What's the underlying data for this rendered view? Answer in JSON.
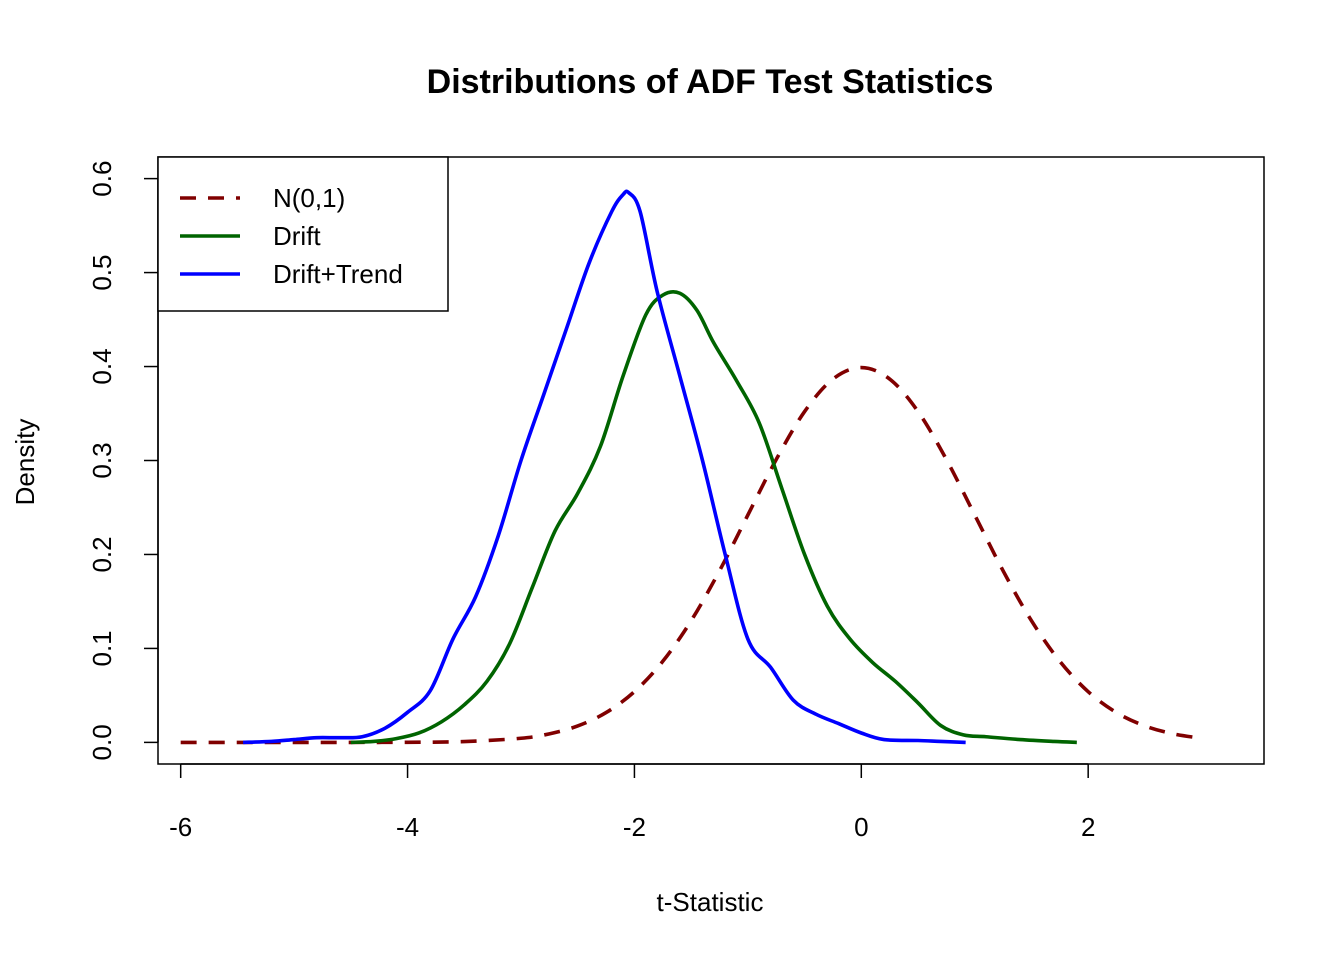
{
  "chart_data": {
    "type": "line",
    "title": "Distributions of ADF Test Statistics",
    "xlabel": "t-Statistic",
    "ylabel": "Density",
    "xlim": [
      -6.2,
      3.55
    ],
    "ylim": [
      -0.023,
      0.623
    ],
    "x_ticks": [
      -6,
      -4,
      -2,
      0,
      2
    ],
    "y_ticks": [
      0.0,
      0.1,
      0.2,
      0.3,
      0.4,
      0.5,
      0.6
    ],
    "legend_position": "top-left",
    "series": [
      {
        "name": "N(0,1)",
        "color": "#800000",
        "style": "dashed",
        "x": [
          -6.0,
          -5.5,
          -5.0,
          -4.5,
          -4.0,
          -3.5,
          -3.0,
          -2.75,
          -2.5,
          -2.25,
          -2.0,
          -1.75,
          -1.5,
          -1.25,
          -1.0,
          -0.75,
          -0.5,
          -0.25,
          0.0,
          0.25,
          0.5,
          0.75,
          1.0,
          1.25,
          1.5,
          1.75,
          2.0,
          2.25,
          2.5,
          2.75,
          3.0
        ],
        "y": [
          0.0,
          0.0,
          0.0,
          0.0,
          0.0001,
          0.0009,
          0.0044,
          0.0091,
          0.0175,
          0.0317,
          0.054,
          0.0863,
          0.1295,
          0.1826,
          0.242,
          0.3011,
          0.3521,
          0.3867,
          0.3989,
          0.3867,
          0.3521,
          0.3011,
          0.242,
          0.1826,
          0.1295,
          0.0863,
          0.054,
          0.0317,
          0.0175,
          0.0091,
          0.0044
        ]
      },
      {
        "name": "Drift",
        "color": "#006400",
        "style": "solid",
        "x": [
          -4.5,
          -4.3,
          -4.1,
          -3.9,
          -3.7,
          -3.5,
          -3.3,
          -3.1,
          -2.9,
          -2.7,
          -2.5,
          -2.3,
          -2.1,
          -1.9,
          -1.75,
          -1.6,
          -1.45,
          -1.3,
          -1.1,
          -0.9,
          -0.7,
          -0.5,
          -0.3,
          -0.1,
          0.1,
          0.3,
          0.5,
          0.7,
          0.9,
          1.1,
          1.4,
          1.7,
          1.9
        ],
        "y": [
          0.0,
          0.001,
          0.004,
          0.01,
          0.022,
          0.04,
          0.065,
          0.105,
          0.165,
          0.225,
          0.265,
          0.315,
          0.39,
          0.455,
          0.476,
          0.478,
          0.46,
          0.425,
          0.385,
          0.34,
          0.27,
          0.2,
          0.145,
          0.11,
          0.085,
          0.065,
          0.042,
          0.018,
          0.008,
          0.006,
          0.003,
          0.001,
          0.0
        ]
      },
      {
        "name": "Drift+Trend",
        "color": "#0000FF",
        "style": "solid",
        "x": [
          -5.45,
          -5.2,
          -5.0,
          -4.8,
          -4.6,
          -4.4,
          -4.2,
          -4.0,
          -3.8,
          -3.6,
          -3.4,
          -3.2,
          -3.0,
          -2.8,
          -2.6,
          -2.4,
          -2.2,
          -2.1,
          -2.05,
          -1.95,
          -1.8,
          -1.6,
          -1.4,
          -1.2,
          -1.0,
          -0.8,
          -0.6,
          -0.4,
          -0.2,
          0.0,
          0.2,
          0.5,
          0.7,
          0.92
        ],
        "y": [
          0.0,
          0.001,
          0.003,
          0.005,
          0.005,
          0.006,
          0.015,
          0.032,
          0.055,
          0.11,
          0.155,
          0.22,
          0.3,
          0.37,
          0.44,
          0.51,
          0.565,
          0.583,
          0.585,
          0.565,
          0.48,
          0.39,
          0.3,
          0.2,
          0.11,
          0.08,
          0.045,
          0.03,
          0.02,
          0.01,
          0.003,
          0.002,
          0.001,
          0.0
        ]
      }
    ]
  }
}
